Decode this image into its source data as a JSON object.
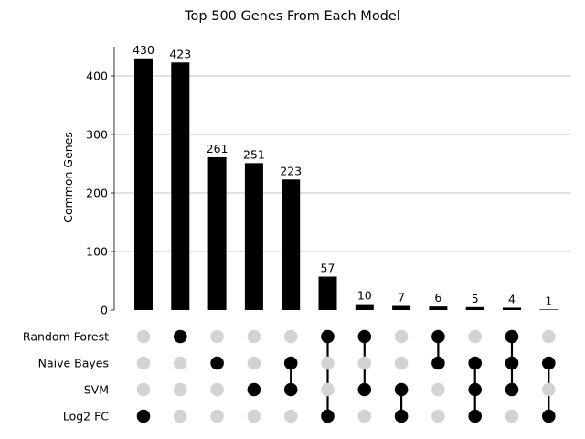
{
  "chart_data": {
    "type": "bar",
    "title": "Top 500 Genes From Each Model",
    "ylabel": "Common Genes",
    "ylim": [
      0,
      450
    ],
    "yticks": [
      0,
      100,
      200,
      300,
      400
    ],
    "grid": true,
    "bar_color": "#000000",
    "dot_active_color": "#000000",
    "dot_inactive_color": "#d3d3d3",
    "sets": [
      "Random Forest",
      "Naive Bayes",
      "SVM",
      "Log2 FC"
    ],
    "values": [
      430,
      423,
      261,
      251,
      223,
      57,
      10,
      7,
      6,
      5,
      4,
      1
    ],
    "memberships": [
      [
        "Log2 FC"
      ],
      [
        "Random Forest"
      ],
      [
        "Naive Bayes"
      ],
      [
        "SVM"
      ],
      [
        "Naive Bayes",
        "SVM"
      ],
      [
        "Random Forest",
        "Log2 FC"
      ],
      [
        "Random Forest",
        "SVM"
      ],
      [
        "SVM",
        "Log2 FC"
      ],
      [
        "Random Forest",
        "Naive Bayes"
      ],
      [
        "Naive Bayes",
        "SVM",
        "Log2 FC"
      ],
      [
        "Random Forest",
        "Naive Bayes",
        "SVM"
      ],
      [
        "Naive Bayes",
        "Log2 FC"
      ]
    ]
  }
}
